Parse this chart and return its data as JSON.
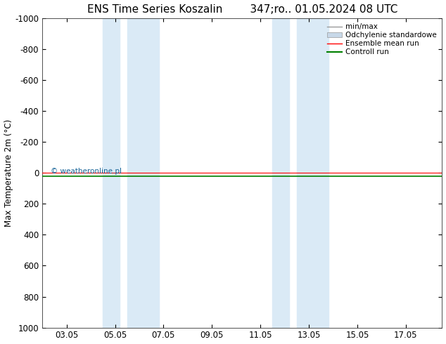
{
  "title": "ENS Time Series Koszalin        347;ro.. 01.05.2024 08 UTC",
  "ylabel": "Max Temperature 2m (°C)",
  "ylim": [
    -1000,
    1000
  ],
  "yticks": [
    -1000,
    -800,
    -600,
    -400,
    -200,
    0,
    200,
    400,
    600,
    800,
    1000
  ],
  "ytick_labels": [
    "-1000",
    "-800",
    "-600",
    "-400",
    "-200",
    "0",
    "200",
    "400",
    "600",
    "800",
    "1000"
  ],
  "xtick_labels": [
    "03.05",
    "05.05",
    "07.05",
    "09.05",
    "11.05",
    "13.05",
    "15.05",
    "17.05"
  ],
  "xtick_positions": [
    2,
    4,
    6,
    8,
    10,
    12,
    14,
    16
  ],
  "shade_bands": [
    {
      "xmin": 3.5,
      "xmax": 4.2
    },
    {
      "xmin": 4.5,
      "xmax": 5.8
    },
    {
      "xmin": 10.5,
      "xmax": 11.2
    },
    {
      "xmin": 11.5,
      "xmax": 12.8
    }
  ],
  "shade_color": "#daeaf6",
  "green_line_y": 20,
  "red_line_y": 0,
  "xmin": 1,
  "xmax": 17.5,
  "legend_entries": [
    {
      "label": "min/max",
      "color": "#999999",
      "lw": 1,
      "style": "-"
    },
    {
      "label": "Odchylenie standardowe",
      "color": "#c8d8e8",
      "lw": 6,
      "style": "-"
    },
    {
      "label": "Ensemble mean run",
      "color": "red",
      "lw": 1,
      "style": "-"
    },
    {
      "label": "Controll run",
      "color": "green",
      "lw": 1.5,
      "style": "-"
    }
  ],
  "watermark": "© weatheronline.pl",
  "watermark_color": "#1a6699",
  "background_color": "#ffffff",
  "title_fontsize": 11,
  "axis_fontsize": 8.5,
  "tick_color": "#444444"
}
